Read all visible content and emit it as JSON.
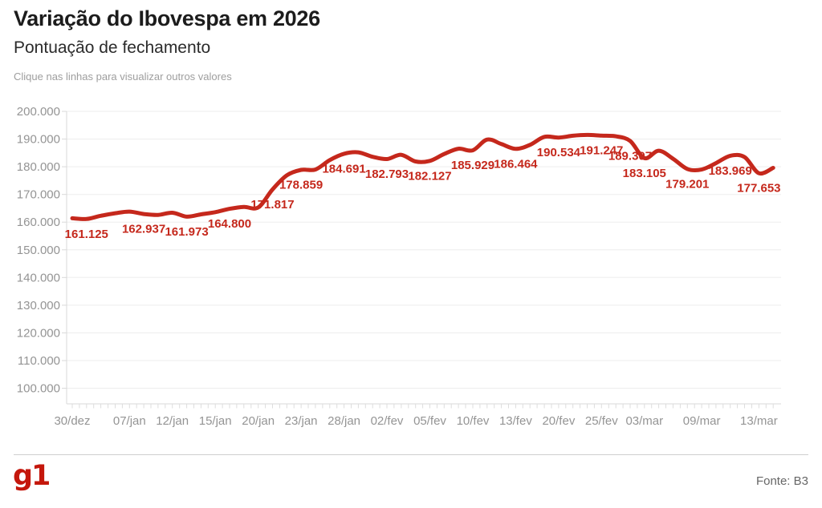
{
  "header": {
    "title": "Variação do Ibovespa em 2026",
    "subtitle": "Pontuação de fechamento",
    "hint": "Clique nas linhas para visualizar outros valores"
  },
  "footer": {
    "logo_text": "g1",
    "source": "Fonte: B3"
  },
  "colors": {
    "line": "#c5281c",
    "point_label": "#c5281c",
    "logo": "#c4170c",
    "grid": "#ededed",
    "axis": "#d9d9d9",
    "tick": "#dddddd",
    "axis_text": "#949494"
  },
  "chart_data": {
    "type": "line",
    "title": "Variação do Ibovespa em 2026",
    "subtitle": "Pontuação de fechamento",
    "ylabel": "",
    "xlabel": "",
    "ylim": [
      100000,
      200000
    ],
    "y_tick_step": 10000,
    "grid": true,
    "legend": false,
    "y_tick_labels": [
      "200.000",
      "190.000",
      "180.000",
      "170.000",
      "160.000",
      "150.000",
      "140.000",
      "130.000",
      "120.000",
      "110.000",
      "100.000"
    ],
    "x_ticks": [
      {
        "i": 0,
        "label": "30/dez"
      },
      {
        "i": 4,
        "label": "07/jan"
      },
      {
        "i": 7,
        "label": "12/jan"
      },
      {
        "i": 10,
        "label": "15/jan"
      },
      {
        "i": 13,
        "label": "20/jan"
      },
      {
        "i": 16,
        "label": "23/jan"
      },
      {
        "i": 19,
        "label": "28/jan"
      },
      {
        "i": 22,
        "label": "02/fev"
      },
      {
        "i": 25,
        "label": "05/fev"
      },
      {
        "i": 28,
        "label": "10/fev"
      },
      {
        "i": 31,
        "label": "13/fev"
      },
      {
        "i": 34,
        "label": "20/fev"
      },
      {
        "i": 37,
        "label": "25/fev"
      },
      {
        "i": 40,
        "label": "03/mar"
      },
      {
        "i": 44,
        "label": "09/mar"
      },
      {
        "i": 48,
        "label": "13/mar"
      }
    ],
    "series": [
      {
        "name": "Ibovespa",
        "values": [
          161400,
          161125,
          162300,
          163200,
          163800,
          162937,
          162600,
          163400,
          161973,
          162800,
          163600,
          164800,
          165500,
          165300,
          171817,
          176900,
          178859,
          179000,
          182400,
          184691,
          185200,
          183600,
          182793,
          184300,
          181900,
          182127,
          184600,
          186500,
          185929,
          189800,
          188200,
          186464,
          187900,
          190800,
          190534,
          191200,
          191500,
          191247,
          191000,
          189307,
          183105,
          185800,
          182900,
          179201,
          179000,
          181300,
          183969,
          183500,
          177653,
          179600
        ]
      }
    ],
    "labeled_points": [
      {
        "i": 1,
        "text": "161.125"
      },
      {
        "i": 5,
        "text": "162.937"
      },
      {
        "i": 8,
        "text": "161.973"
      },
      {
        "i": 11,
        "text": "164.800"
      },
      {
        "i": 14,
        "text": "171.817"
      },
      {
        "i": 16,
        "text": "178.859"
      },
      {
        "i": 19,
        "text": "184.691"
      },
      {
        "i": 22,
        "text": "182.793"
      },
      {
        "i": 25,
        "text": "182.127"
      },
      {
        "i": 28,
        "text": "185.929"
      },
      {
        "i": 31,
        "text": "186.464"
      },
      {
        "i": 34,
        "text": "190.534"
      },
      {
        "i": 37,
        "text": "191.247"
      },
      {
        "i": 39,
        "text": "189.307"
      },
      {
        "i": 40,
        "text": "183.105"
      },
      {
        "i": 43,
        "text": "179.201"
      },
      {
        "i": 46,
        "text": "183.969"
      },
      {
        "i": 48,
        "text": "177.653"
      }
    ]
  }
}
